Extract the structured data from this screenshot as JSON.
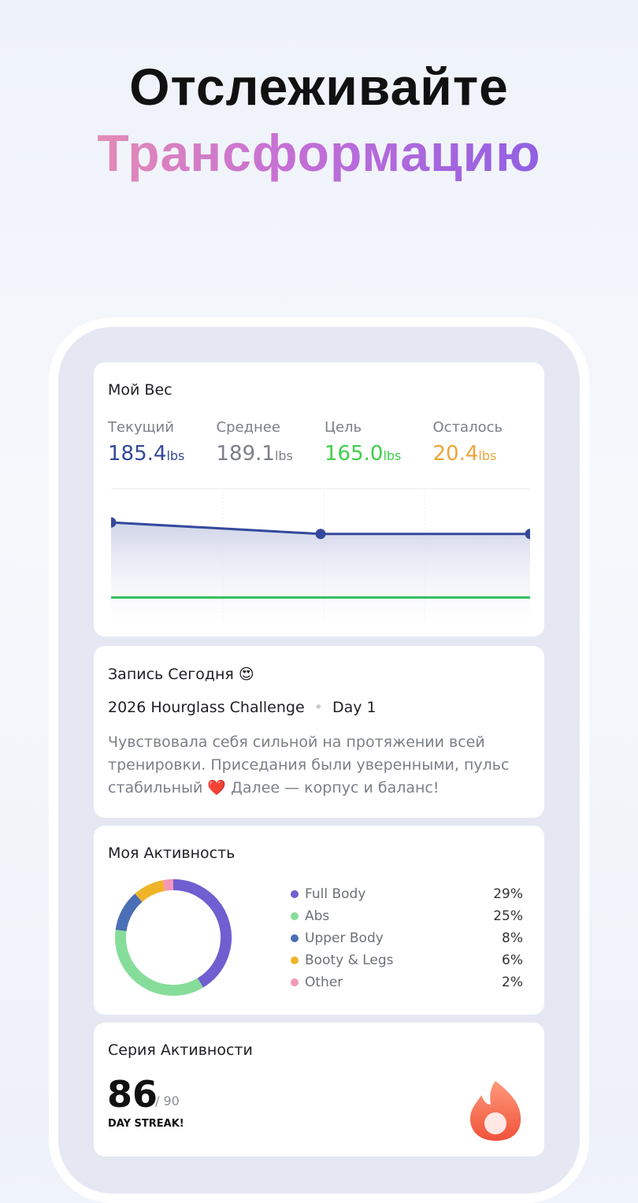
{
  "header": {
    "line1": "Отслеживайте",
    "line2": "Трансформацию"
  },
  "weight_card": {
    "title": "Мой Вес",
    "stats": [
      {
        "label": "Текущий",
        "value": "185.4",
        "unit": "lbs"
      },
      {
        "label": "Среднее",
        "value": "189.1",
        "unit": "lbs"
      },
      {
        "label": "Цель",
        "value": "165.0",
        "unit": "lbs"
      },
      {
        "label": "Осталось",
        "value": "20.4",
        "unit": "lbs"
      }
    ],
    "chart_data": {
      "type": "line",
      "categories": [
        null,
        null,
        null
      ],
      "values": [
        189.1,
        185.4,
        185.4
      ],
      "color": "#34489c",
      "goal_line": 165,
      "goal_color": "#2fbf5e",
      "ylim": [
        157,
        200
      ],
      "grid": true
    }
  },
  "journal_card": {
    "title": "Запись Сегодня 😍",
    "challenge": "2026 Hourglass Challenge",
    "day": "Day 1",
    "text": "Чувствовала себя сильной на протяжении всей тренировки. Приседания были уверенными, пульс стабильный ❤️ Далее — корпус и баланс!"
  },
  "activity_card": {
    "title": "Моя Активность",
    "chart_data": {
      "type": "donut",
      "series": [
        {
          "name": "Full Body",
          "color": "#6f5fd0",
          "values": [
            29
          ],
          "value_labels": [
            "29%"
          ]
        },
        {
          "name": "Abs",
          "color": "#86dd9a",
          "values": [
            25
          ],
          "value_labels": [
            "25%"
          ]
        },
        {
          "name": "Upper Body",
          "color": "#4a6fb5",
          "values": [
            8
          ],
          "value_labels": [
            "8%"
          ]
        },
        {
          "name": "Booty & Legs",
          "color": "#f0b429",
          "values": [
            6
          ],
          "value_labels": [
            "6%"
          ]
        },
        {
          "name": "Other",
          "color": "#f598b8",
          "values": [
            2
          ],
          "value_labels": [
            "2%"
          ]
        }
      ]
    }
  },
  "streak_card": {
    "title": "Серия Активности",
    "count": "86",
    "total": "/ 90",
    "caption": "DAY STREAK!"
  }
}
